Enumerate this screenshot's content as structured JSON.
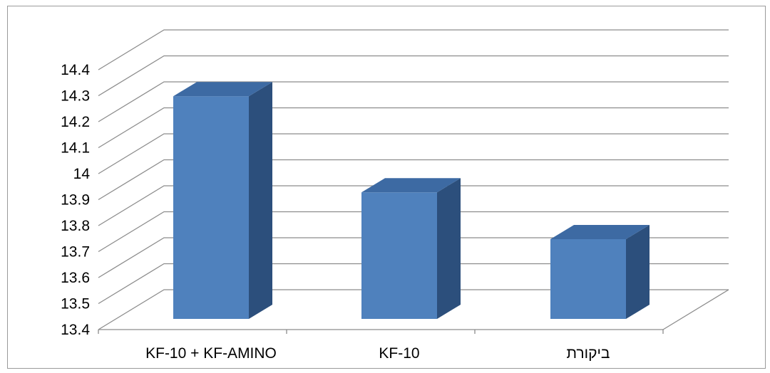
{
  "chart_data": {
    "type": "bar",
    "style": "3d-column",
    "categories": [
      "KF-10 + KF-AMINO",
      "KF-10",
      "ביקורת"
    ],
    "values": [
      14.32,
      13.95,
      13.77
    ],
    "ylim": [
      13.4,
      14.4
    ],
    "y_ticks": [
      "13.4",
      "13.5",
      "13.6",
      "13.7",
      "13.8",
      "13.9",
      "14",
      "14.1",
      "14.2",
      "14.3",
      "14.4"
    ],
    "grid": true,
    "legend": "none",
    "title": "",
    "xlabel": "",
    "ylabel": "",
    "colors": {
      "bar_front": "#4f81bd",
      "bar_top": "#3d6aa3",
      "bar_side": "#2c4f7c",
      "grid": "#8c8c8c"
    }
  }
}
